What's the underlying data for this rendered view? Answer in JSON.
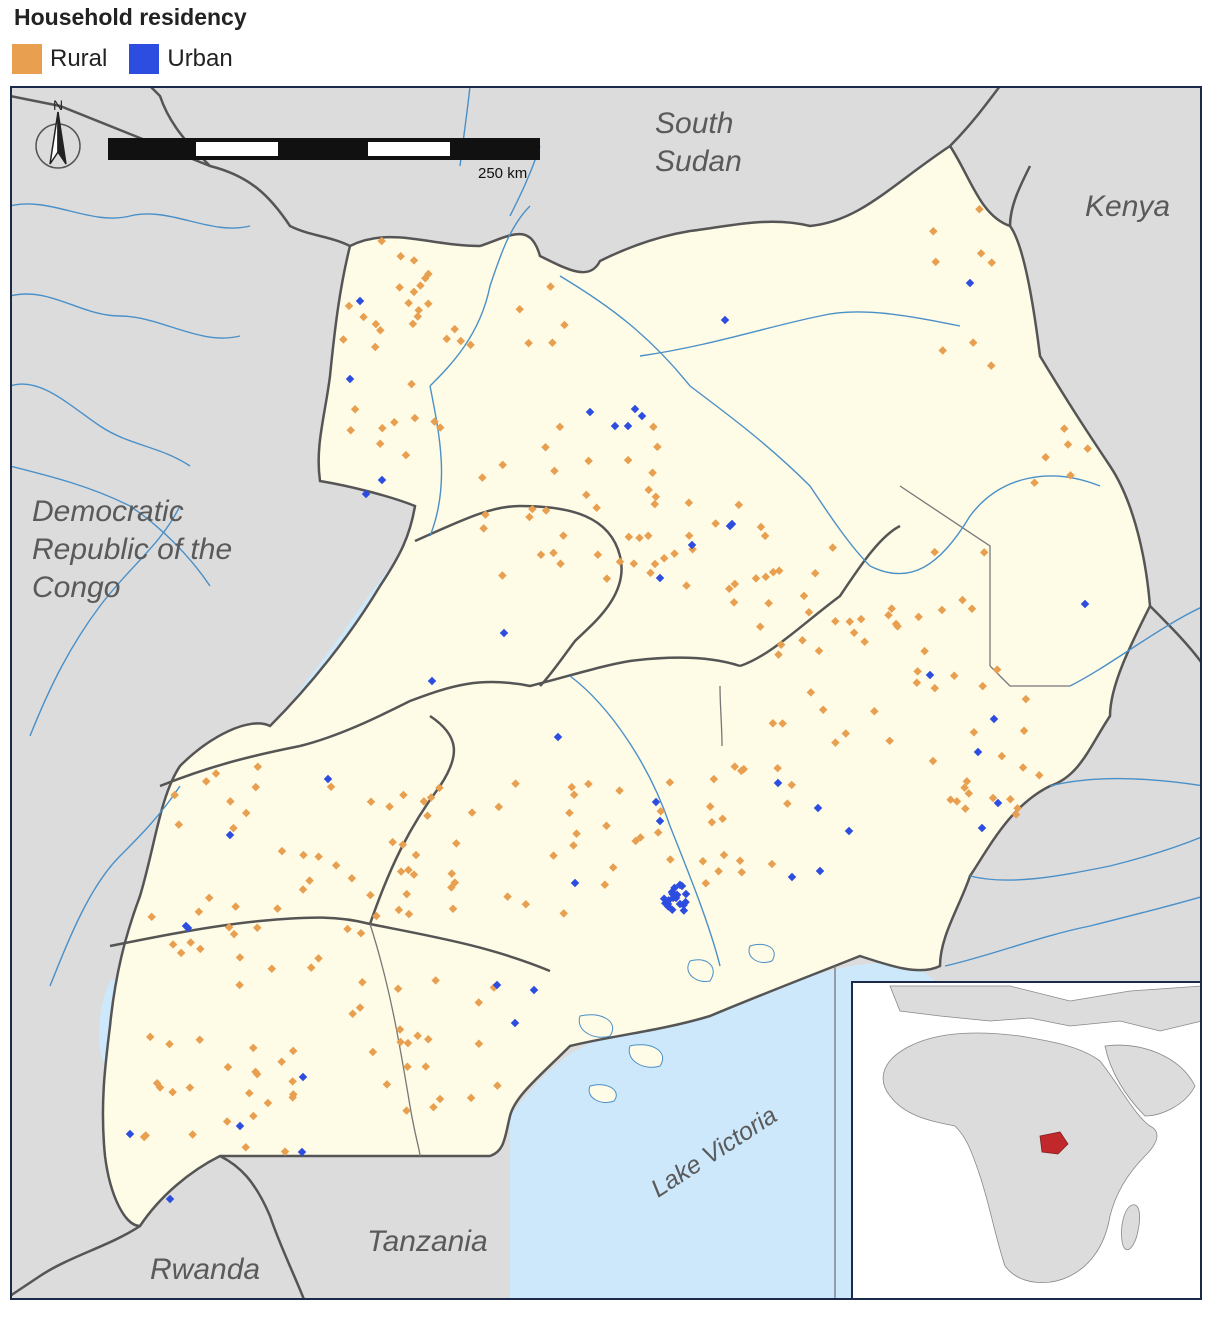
{
  "legend": {
    "title": "Household residency",
    "items": [
      {
        "label": "Rural",
        "color": "#e8a050"
      },
      {
        "label": "Urban",
        "color": "#2d4de0"
      }
    ]
  },
  "map": {
    "north_label": "N",
    "scale_label": "250 km",
    "labels": {
      "south_sudan_1": "South",
      "south_sudan_2": "Sudan",
      "kenya": "Kenya",
      "drc_1": "Democratic",
      "drc_2": "Republic of the",
      "drc_3": "Congo",
      "tanzania": "Tanzania",
      "rwanda": "Rwanda",
      "lake_victoria": "Lake Victoria"
    },
    "colors": {
      "land_outside": "#dcdcdc",
      "uganda": "#fefbe6",
      "water": "#cde8fa",
      "border": "#555555",
      "river": "#4a90c8",
      "frame": "#1c2a4a",
      "inset_highlight": "#c0282c"
    },
    "inset": {
      "name": "Africa locator"
    }
  }
}
